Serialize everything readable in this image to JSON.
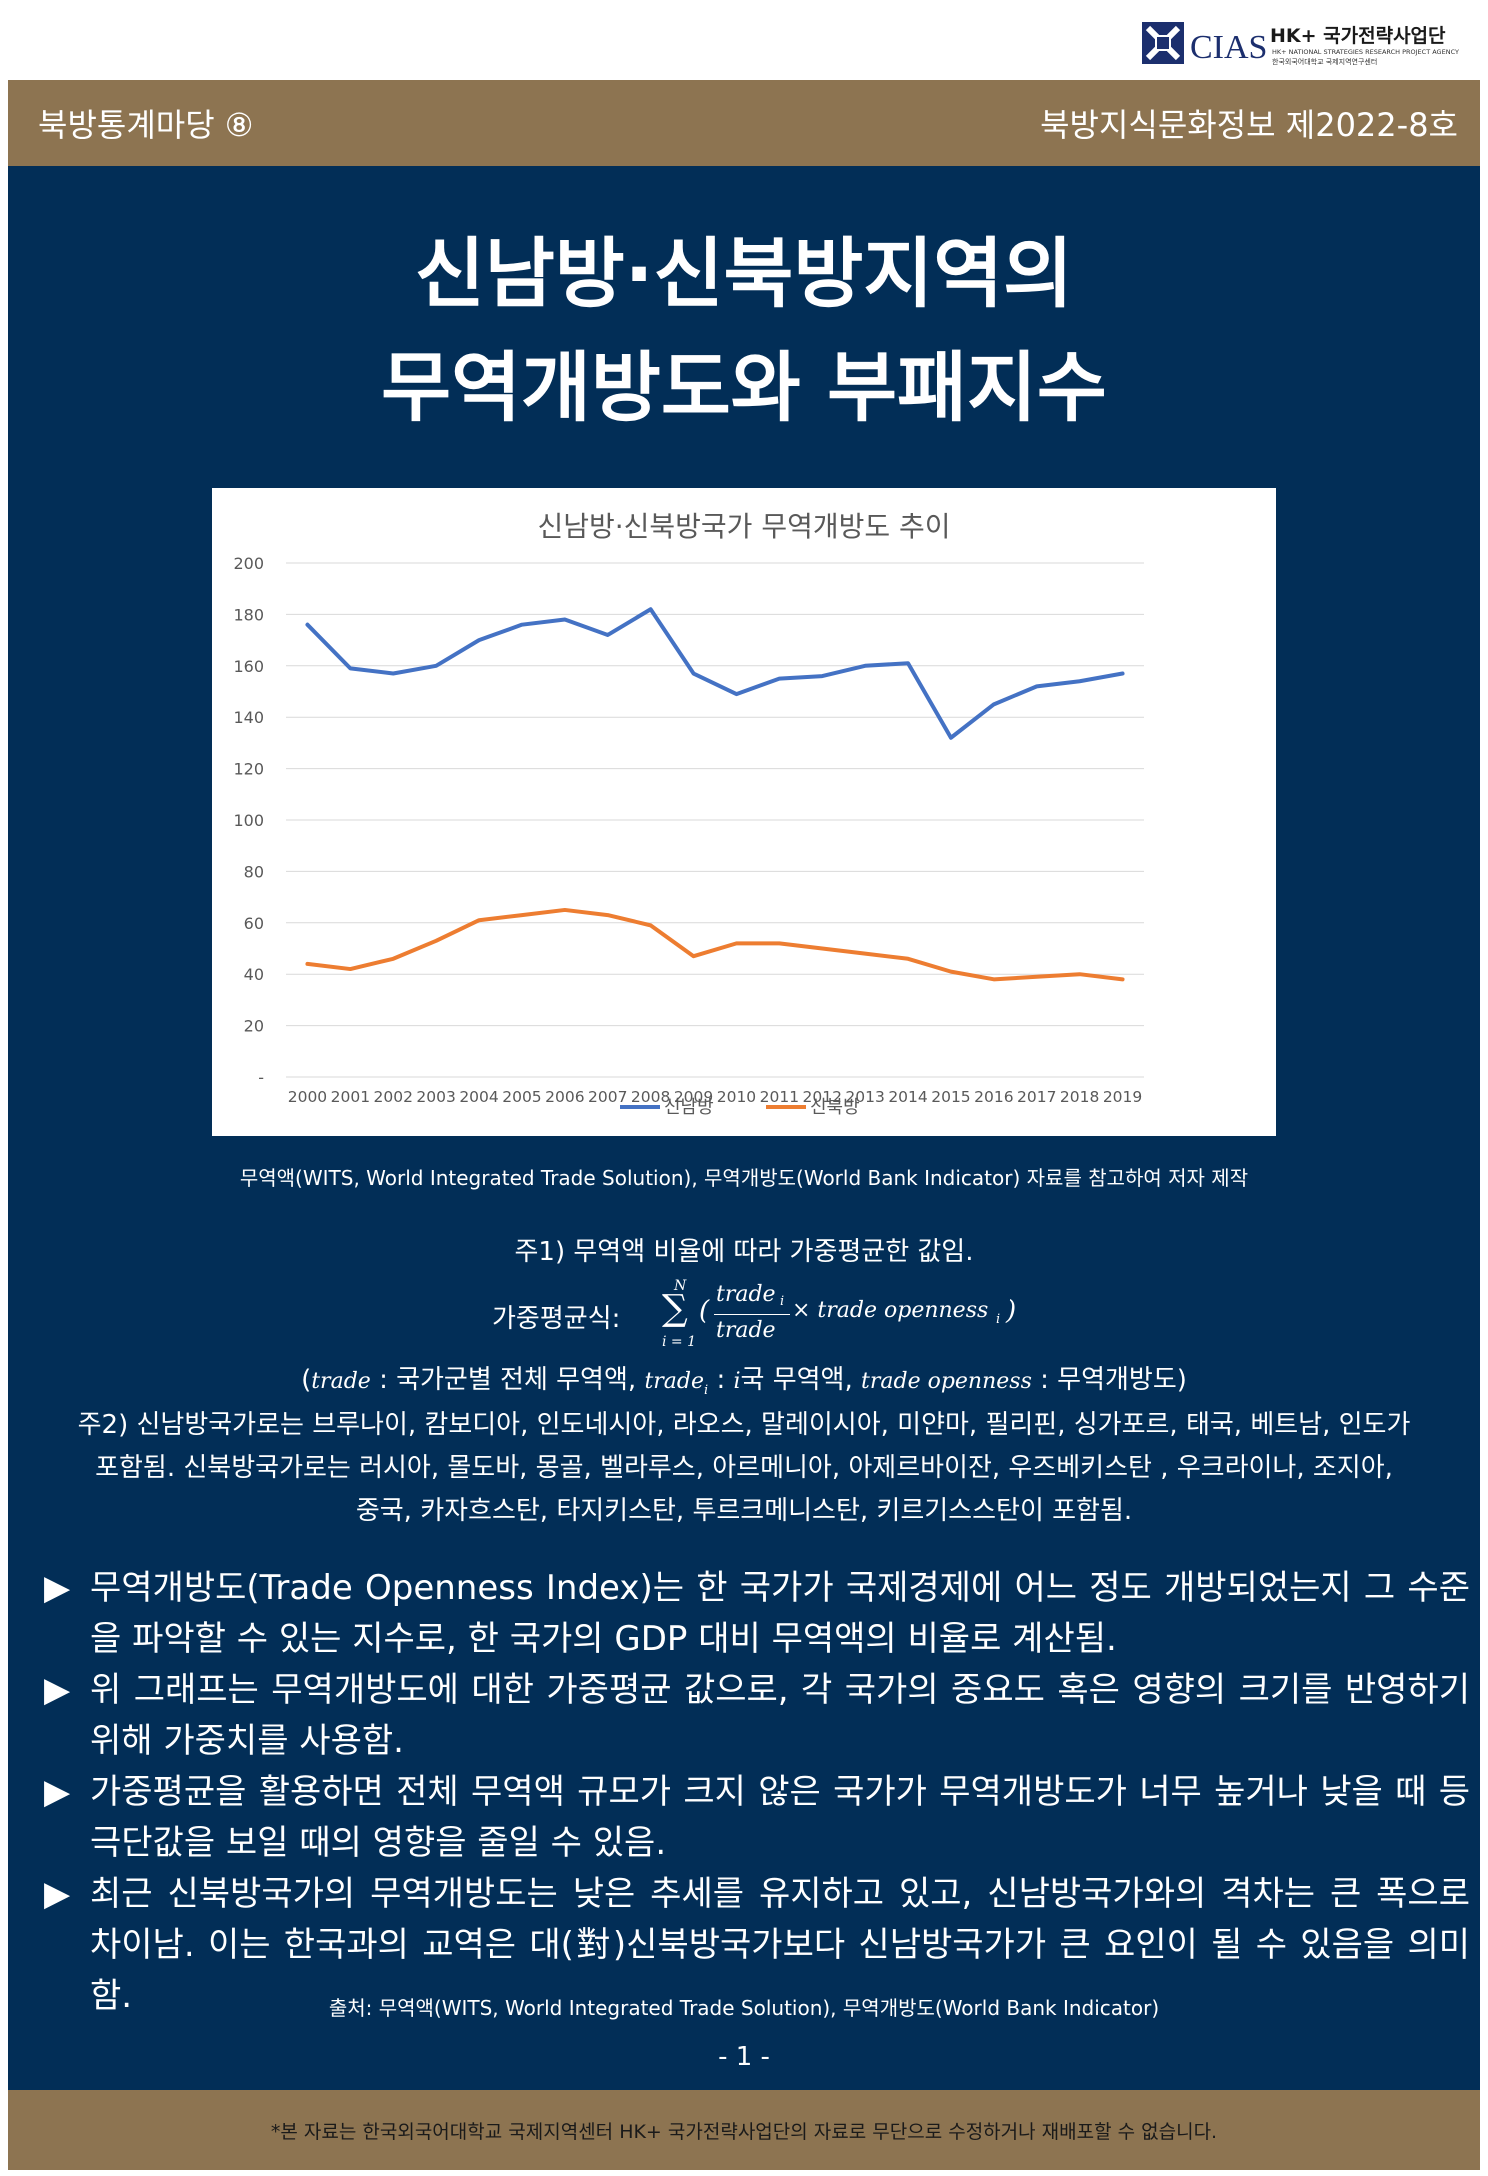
{
  "logo": {
    "mark": "CIAS",
    "org_name": "HK+ 국가전략사업단",
    "org_sub_en": "HK+ NATIONAL STRATEGIES RESEARCH PROJECT AGENCY",
    "org_sub_kr": "한국외국어대학교 국제지역연구센터"
  },
  "header": {
    "series_label": "북방통계마당 ⑧",
    "issue_label": "북방지식문화정보 제2022-8호"
  },
  "title": {
    "line1": "신남방·신북방지역의",
    "line2": "무역개방도와  부패지수"
  },
  "chart_data": {
    "type": "line",
    "title": "신남방·신북방국가 무역개방도 추이",
    "xlabel": "",
    "ylabel": "",
    "categories": [
      "2000",
      "2001",
      "2002",
      "2003",
      "2004",
      "2005",
      "2006",
      "2007",
      "2008",
      "2009",
      "2010",
      "2011",
      "2012",
      "2013",
      "2014",
      "2015",
      "2016",
      "2017",
      "2018",
      "2019"
    ],
    "y_ticks": [
      "-",
      "20",
      "40",
      "60",
      "80",
      "100",
      "120",
      "140",
      "160",
      "180",
      "200"
    ],
    "ylim": [
      0,
      200
    ],
    "grid": true,
    "legend_position": "bottom",
    "series": [
      {
        "name": "신남방",
        "color": "#4472c4",
        "values": [
          176,
          159,
          157,
          160,
          170,
          176,
          178,
          172,
          182,
          157,
          149,
          155,
          156,
          160,
          161,
          132,
          145,
          152,
          154,
          157
        ]
      },
      {
        "name": "신북방",
        "color": "#ed7d31",
        "values": [
          44,
          42,
          46,
          53,
          61,
          63,
          65,
          63,
          59,
          47,
          52,
          52,
          50,
          48,
          46,
          41,
          38,
          39,
          40,
          38
        ]
      }
    ]
  },
  "chart_caption": "무역액(WITS, World Integrated Trade Solution), 무역개방도(World Bank Indicator) 자료를 참고하여 저자 제작",
  "notes": {
    "note1": "주1) 무역액 비율에 따라 가중평균한 값임.",
    "formula_label": "가중평균식:",
    "formula": {
      "sum_top": "N",
      "sum_bottom": "i = 1",
      "frac_num": "trade",
      "frac_sub": "i",
      "frac_den": "trade",
      "times_term": "× trade openness",
      "times_sub": "i",
      "open_paren": "(",
      "close_paren": ")"
    },
    "definitions": {
      "open": "(",
      "v1": "trade",
      "t1": ": 국가군별 전체 무역액,",
      "v2": "trade",
      "v2_sub": "i",
      "t2": ":",
      "v3": "i",
      "t3": "국 무역액,",
      "v4": "trade openness",
      "t4": ": 무역개방도)"
    },
    "note2_line1": "주2) 신남방국가로는 브루나이, 캄보디아, 인도네시아, 라오스, 말레이시아, 미얀마, 필리핀, 싱가포르, 태국, 베트남, 인도가",
    "note2_line2": "포함됨. 신북방국가로는 러시아, 몰도바, 몽골, 벨라루스, 아르메니아, 아제르바이잔, 우즈베키스탄 , 우크라이나, 조지아,",
    "note2_line3": "중국, 카자흐스탄, 타지키스탄, 투르크메니스탄, 키르기스스탄이 포함됨."
  },
  "bullets": [
    {
      "marker": "▶",
      "text": "무역개방도(Trade Openness Index)는 한 국가가 국제경제에 어느 정도 개방되었는지 그 수준을 파악할 수 있는 지수로, 한 국가의 GDP 대비 무역액의 비율로 계산됨."
    },
    {
      "marker": "▶",
      "text": "위 그래프는 무역개방도에 대한 가중평균 값으로, 각 국가의 중요도 혹은 영향의 크기를 반영하기 위해 가중치를 사용함."
    },
    {
      "marker": "▶",
      "text": "가중평균을 활용하면 전체 무역액 규모가 크지 않은 국가가 무역개방도가 너무 높거나 낮을 때 등 극단값을 보일 때의 영향을 줄일 수 있음."
    },
    {
      "marker": "▶",
      "text": "최근 신북방국가의 무역개방도는 낮은 추세를 유지하고 있고, 신남방국가와의 격차는 큰 폭으로 차이남. 이는 한국과의 교역은 대(對)신북방국가보다 신남방국가가 큰 요인이 될 수 있음을 의미함."
    }
  ],
  "source": "출처: 무역액(WITS, World Integrated Trade Solution), 무역개방도(World Bank Indicator)",
  "page_number": "- 1 -",
  "footer": "*본 자료는 한국외국어대학교 국제지역센터 HK+ 국가전략사업단의 자료로 무단으로 수정하거나 재배포할 수 없습니다."
}
